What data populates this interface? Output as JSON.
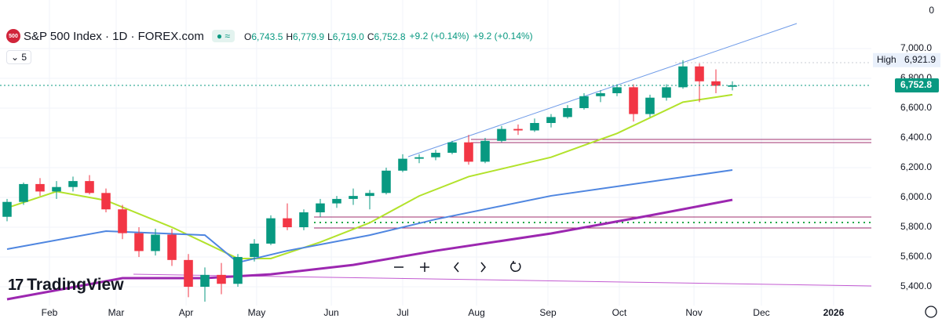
{
  "chart_data": {
    "type": "candlestick",
    "header": {
      "logo": "500",
      "symbol": "S&P 500 Index · 1D · FOREX.com",
      "ohlc": [
        {
          "key": "O",
          "value": "6,743.5"
        },
        {
          "key": "H",
          "value": "6,779.9"
        },
        {
          "key": "L",
          "value": "6,719.0"
        },
        {
          "key": "C",
          "value": "6,752.8"
        }
      ],
      "change": [
        "+9.2 (+0.14%)",
        "+9.2 (+0.14%)"
      ],
      "indicators": "5"
    },
    "brand": "TradingView",
    "axis_top_label": "0",
    "up_color": "#089981",
    "down_color": "#f23645",
    "open": [
      5870,
      5970,
      6090,
      6040,
      6070,
      6110,
      6030,
      5920,
      5760,
      5640,
      5750,
      5580,
      5400,
      5480,
      5420,
      5600,
      5690,
      5860,
      5800,
      5900,
      5960,
      5990,
      6010,
      6030,
      6180,
      6260,
      6270,
      6300,
      6370,
      6240,
      6380,
      6460,
      6450,
      6500,
      6540,
      6600,
      6680,
      6700,
      6740,
      6560,
      6670,
      6740,
      6880,
      6780,
      6743.5
    ],
    "high": [
      5990,
      6100,
      6130,
      6110,
      6140,
      6150,
      6060,
      5950,
      5800,
      5790,
      5790,
      5620,
      5530,
      5560,
      5620,
      5720,
      5880,
      5960,
      5920,
      5990,
      6010,
      6060,
      6050,
      6200,
      6290,
      6290,
      6320,
      6380,
      6420,
      6400,
      6480,
      6490,
      6530,
      6560,
      6620,
      6700,
      6720,
      6760,
      6760,
      6690,
      6760,
      6921.9,
      6900,
      6860,
      6779.9
    ],
    "low": [
      5840,
      5950,
      6010,
      5990,
      6040,
      6020,
      5900,
      5720,
      5600,
      5610,
      5540,
      5330,
      5300,
      5350,
      5400,
      5570,
      5680,
      5780,
      5780,
      5870,
      5930,
      5950,
      5920,
      6020,
      6170,
      6230,
      6250,
      6290,
      6220,
      6230,
      6370,
      6420,
      6440,
      6470,
      6530,
      6590,
      6640,
      6680,
      6510,
      6540,
      6650,
      6730,
      6640,
      6700,
      6719
    ],
    "close": [
      5970,
      6090,
      6040,
      6070,
      6110,
      6030,
      5920,
      5760,
      5640,
      5750,
      5580,
      5400,
      5480,
      5420,
      5600,
      5690,
      5860,
      5800,
      5900,
      5960,
      5990,
      6010,
      6030,
      6180,
      6260,
      6270,
      6300,
      6370,
      6240,
      6380,
      6460,
      6450,
      6500,
      6540,
      6600,
      6680,
      6700,
      6740,
      6560,
      6670,
      6740,
      6880,
      6780,
      6750,
      6752.8
    ],
    "overlays": [
      {
        "color": "#b2e22b",
        "x": [
          0,
          3,
          6,
          10,
          14,
          16,
          19,
          22,
          25,
          28,
          33,
          37,
          41,
          44
        ],
        "values": [
          5930,
          6040,
          5980,
          5800,
          5590,
          5590,
          5700,
          5830,
          6010,
          6140,
          6270,
          6430,
          6640,
          6690
        ]
      },
      {
        "color": "#4f86e0",
        "x": [
          0,
          6,
          12,
          14,
          17,
          22,
          26,
          33,
          44
        ],
        "values": [
          5653,
          5774,
          5747,
          5563,
          5642,
          5747,
          5853,
          6011,
          6184
        ]
      },
      {
        "color": "#9c27b0",
        "x": [
          0,
          7,
          12,
          16,
          21,
          26,
          33,
          39,
          44
        ],
        "values": [
          5316,
          5458,
          5458,
          5484,
          5547,
          5642,
          5758,
          5879,
          5984
        ]
      }
    ],
    "xlim": [
      -0.4286,
      52.4286
    ],
    "xticks": [
      {
        "value": 2.57,
        "label": "Feb"
      },
      {
        "value": 6.62,
        "label": "Mar"
      },
      {
        "value": 10.86,
        "label": "Apr"
      },
      {
        "value": 15.14,
        "label": "May"
      },
      {
        "value": 19.67,
        "label": "Jun"
      },
      {
        "value": 24.0,
        "label": "Jul"
      },
      {
        "value": 28.48,
        "label": "Aug"
      },
      {
        "value": 32.81,
        "label": "Sep"
      },
      {
        "value": 37.14,
        "label": "Oct"
      },
      {
        "value": 41.67,
        "label": "Nov"
      },
      {
        "value": 45.76,
        "label": "Dec"
      },
      {
        "value": 50.14,
        "label": "2026"
      }
    ],
    "ylim": [
      5274,
      7326
    ],
    "yticks": [
      {
        "value": 5400,
        "label": "5,400.0"
      },
      {
        "value": 5600,
        "label": "5,600.0"
      },
      {
        "value": 5800,
        "label": "5,800.0"
      },
      {
        "value": 6000,
        "label": "6,000.0"
      },
      {
        "value": 6200,
        "label": "6,200.0"
      },
      {
        "value": 6400,
        "label": "6,400.0"
      },
      {
        "value": 6600,
        "label": "6,600.0"
      },
      {
        "value": 6800,
        "label": "6,800.0"
      },
      {
        "value": 7000,
        "label": "7,000.0"
      }
    ],
    "high_marker": {
      "text": "High",
      "value": 6921.9,
      "label": "6,921.9"
    },
    "last_price": {
      "value": 6752.8,
      "label": "6,752.8",
      "color": "#089981"
    }
  }
}
